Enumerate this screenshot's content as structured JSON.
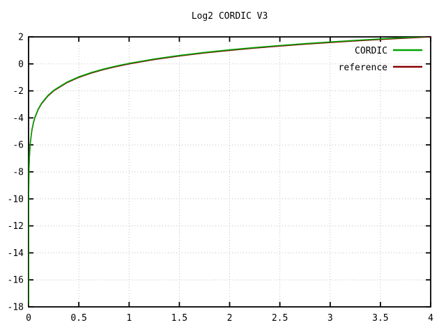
{
  "chart_data": {
    "type": "line",
    "title": "Log2 CORDIC V3",
    "xlabel": "",
    "ylabel": "",
    "xlim": [
      0,
      4
    ],
    "ylim": [
      -18,
      2
    ],
    "grid": true,
    "grid_color": "#bfbfbf",
    "border_color": "#000000",
    "legend_position": "inside-top-right",
    "x_tick_values": [
      0,
      0.5,
      1,
      1.5,
      2,
      2.5,
      3,
      3.5,
      4
    ],
    "x_tick_labels": [
      "0",
      "0.5",
      "1",
      "1.5",
      "2",
      "2.5",
      "3",
      "3.5",
      "4"
    ],
    "y_tick_values": [
      2,
      0,
      -2,
      -4,
      -6,
      -8,
      -10,
      -12,
      -14,
      -16,
      -18
    ],
    "y_tick_labels": [
      "2",
      "0",
      "-2",
      "-4",
      "-6",
      "-8",
      "-10",
      "-12",
      "-14",
      "-16",
      "-18"
    ],
    "x": [
      4e-06,
      1e-05,
      5e-05,
      0.0001,
      0.0005,
      0.001,
      0.002,
      0.004,
      0.008,
      0.016,
      0.032,
      0.048,
      0.064,
      0.096,
      0.128,
      0.192,
      0.256,
      0.384,
      0.5,
      0.625,
      0.75,
      0.875,
      1,
      1.25,
      1.5,
      1.75,
      2,
      2.25,
      2.5,
      2.75,
      3,
      3.25,
      3.5,
      3.75,
      4
    ],
    "series": [
      {
        "name": "CORDIC",
        "color": "#00a400",
        "values": [
          -17.9316,
          -16.6096,
          -14.2877,
          -13.2877,
          -10.9658,
          -9.9658,
          -8.9658,
          -7.9658,
          -6.9658,
          -5.9658,
          -4.9658,
          -4.3808,
          -3.9658,
          -3.3808,
          -2.9658,
          -2.3808,
          -1.9658,
          -1.3808,
          -1.0,
          -0.678,
          -0.415,
          -0.1926,
          0.0,
          0.3219,
          0.585,
          0.8074,
          1.0,
          1.1699,
          1.3219,
          1.4594,
          1.585,
          1.7004,
          1.8074,
          1.9069,
          2.0
        ]
      },
      {
        "name": "reference",
        "color": "#8b0000",
        "values": [
          -17.9316,
          -16.6096,
          -14.2877,
          -13.2877,
          -10.9658,
          -9.9658,
          -8.9658,
          -7.9658,
          -6.9658,
          -5.9658,
          -4.9658,
          -4.3808,
          -3.9658,
          -3.3808,
          -2.9658,
          -2.3808,
          -1.9658,
          -1.3808,
          -1.0,
          -0.678,
          -0.415,
          -0.1926,
          0.0,
          0.3219,
          0.585,
          0.8074,
          1.0,
          1.1699,
          1.3219,
          1.4594,
          1.585,
          1.7004,
          1.8074,
          1.9069,
          2.0
        ]
      }
    ]
  }
}
